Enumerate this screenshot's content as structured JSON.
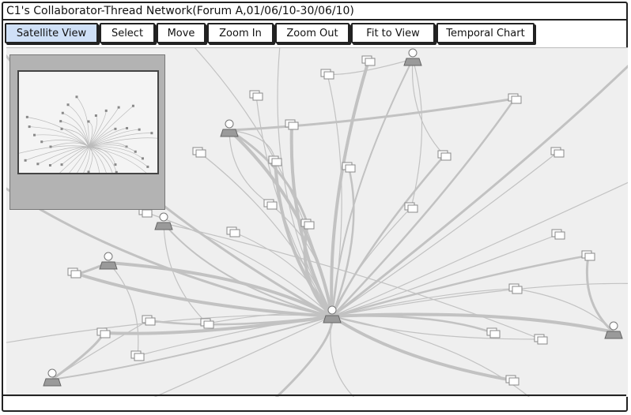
{
  "window": {
    "title": "C1's Collaborator-Thread Network(Forum A,01/06/10-30/06/10)"
  },
  "toolbar": {
    "buttons": [
      {
        "label": "Satellite View",
        "active": true
      },
      {
        "label": "Select",
        "active": false
      },
      {
        "label": "Move",
        "active": false
      },
      {
        "label": "Zoom In",
        "active": false
      },
      {
        "label": "Zoom Out",
        "active": false
      },
      {
        "label": "Fit to View",
        "active": false
      },
      {
        "label": "Temporal Chart",
        "active": false
      }
    ]
  },
  "colors": {
    "active_button": "#cfe0f7",
    "canvas_bg": "#efefef",
    "edge": "#bdbdbd",
    "node": "#9a9a9a"
  },
  "network": {
    "node_icons": [
      "person-node-icon",
      "thread-node-icon"
    ]
  },
  "status": {
    "text": ""
  }
}
